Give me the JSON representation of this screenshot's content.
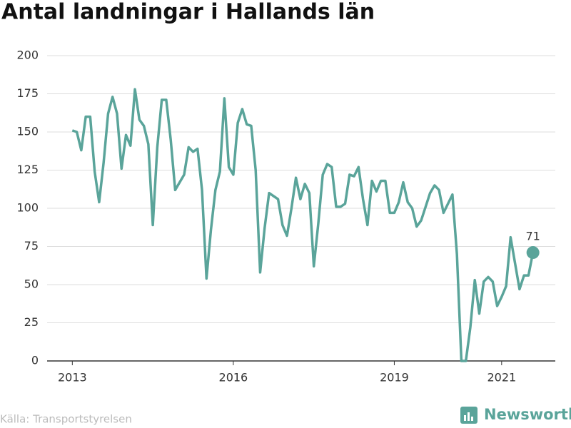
{
  "chart_data": {
    "type": "line",
    "title": "Antal landningar i Hallands län",
    "source": "Källa: Transportstyrelsen",
    "brand": "Newsworthy",
    "x": [
      "2013-01",
      "2013-02",
      "2013-03",
      "2013-04",
      "2013-05",
      "2013-06",
      "2013-07",
      "2013-08",
      "2013-09",
      "2013-10",
      "2013-11",
      "2013-12",
      "2014-01",
      "2014-02",
      "2014-03",
      "2014-04",
      "2014-05",
      "2014-06",
      "2014-07",
      "2014-08",
      "2014-09",
      "2014-10",
      "2014-11",
      "2014-12",
      "2015-01",
      "2015-02",
      "2015-03",
      "2015-04",
      "2015-05",
      "2015-06",
      "2015-07",
      "2015-08",
      "2015-09",
      "2015-10",
      "2015-11",
      "2015-12",
      "2016-01",
      "2016-02",
      "2016-03",
      "2016-04",
      "2016-05",
      "2016-06",
      "2016-07",
      "2016-08",
      "2016-09",
      "2016-10",
      "2016-11",
      "2016-12",
      "2017-01",
      "2017-02",
      "2017-03",
      "2017-04",
      "2017-05",
      "2017-06",
      "2017-07",
      "2017-08",
      "2017-09",
      "2017-10",
      "2017-11",
      "2017-12",
      "2018-01",
      "2018-02",
      "2018-03",
      "2018-04",
      "2018-05",
      "2018-06",
      "2018-07",
      "2018-08",
      "2018-09",
      "2018-10",
      "2018-11",
      "2018-12",
      "2019-01",
      "2019-02",
      "2019-03",
      "2019-04",
      "2019-05",
      "2019-06",
      "2019-07",
      "2019-08",
      "2019-09",
      "2019-10",
      "2019-11",
      "2019-12",
      "2020-01",
      "2020-02",
      "2020-03",
      "2020-04",
      "2020-05",
      "2020-06",
      "2020-07",
      "2020-08",
      "2020-09",
      "2020-10",
      "2020-11",
      "2020-12",
      "2021-01",
      "2021-02",
      "2021-03",
      "2021-04",
      "2021-05",
      "2021-06",
      "2021-07",
      "2021-08"
    ],
    "series": [
      {
        "name": "Antal landningar",
        "color": "#5aa49a",
        "values": [
          151,
          150,
          138,
          160,
          160,
          124,
          104,
          130,
          162,
          173,
          162,
          126,
          148,
          141,
          178,
          158,
          154,
          142,
          89,
          140,
          171,
          171,
          145,
          112,
          117,
          122,
          140,
          137,
          139,
          112,
          54,
          86,
          112,
          124,
          172,
          127,
          122,
          156,
          165,
          155,
          154,
          125,
          58,
          87,
          110,
          108,
          106,
          89,
          82,
          100,
          120,
          106,
          116,
          110,
          62,
          90,
          122,
          129,
          127,
          101,
          101,
          103,
          122,
          121,
          127,
          106,
          89,
          118,
          111,
          118,
          118,
          97,
          97,
          104,
          117,
          104,
          100,
          88,
          92,
          101,
          110,
          115,
          112,
          97,
          103,
          109,
          70,
          0,
          0,
          22,
          53,
          31,
          52,
          55,
          52,
          36,
          42,
          49,
          81,
          64,
          47,
          56,
          56,
          71
        ]
      }
    ],
    "xlim": [
      "2012-08",
      "2022-01"
    ],
    "xticks": [
      {
        "value": "2013-01",
        "label": "2013"
      },
      {
        "value": "2016-01",
        "label": "2016"
      },
      {
        "value": "2019-01",
        "label": "2019"
      },
      {
        "value": "2021-01",
        "label": "2021"
      }
    ],
    "ylim": [
      0,
      200
    ],
    "yticks": [
      0,
      25,
      50,
      75,
      100,
      125,
      150,
      175,
      200
    ],
    "grid": true
  }
}
